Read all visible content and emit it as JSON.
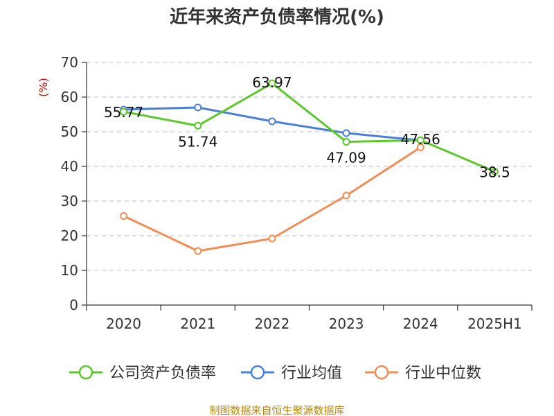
{
  "chart_data": {
    "type": "line",
    "title": "近年来资产负债率情况(%)",
    "ylabel": "(%)",
    "xlabel": "",
    "categories": [
      "2020",
      "2021",
      "2022",
      "2023",
      "2024",
      "2025H1"
    ],
    "ylim": [
      0,
      70
    ],
    "yticks": [
      0,
      10,
      20,
      30,
      40,
      50,
      60,
      70
    ],
    "grid": true,
    "legend_position": "bottom",
    "series": [
      {
        "name": "公司资产负债率",
        "color": "#5cc72b",
        "values": [
          55.77,
          51.74,
          63.97,
          47.09,
          47.56,
          38.5
        ],
        "labels": [
          "55.77",
          "51.74",
          "63.97",
          "47.09",
          "47.56",
          "38.5"
        ]
      },
      {
        "name": "行业均值",
        "color": "#4a7fd9",
        "values": [
          56.4,
          57.0,
          53.0,
          49.6,
          47.5,
          null
        ],
        "labels": []
      },
      {
        "name": "行业中位数",
        "color": "#f28c55",
        "values": [
          25.7,
          15.6,
          19.2,
          31.6,
          45.5,
          null
        ],
        "labels": []
      }
    ]
  },
  "source": "制图数据来自恒生聚源数据库"
}
